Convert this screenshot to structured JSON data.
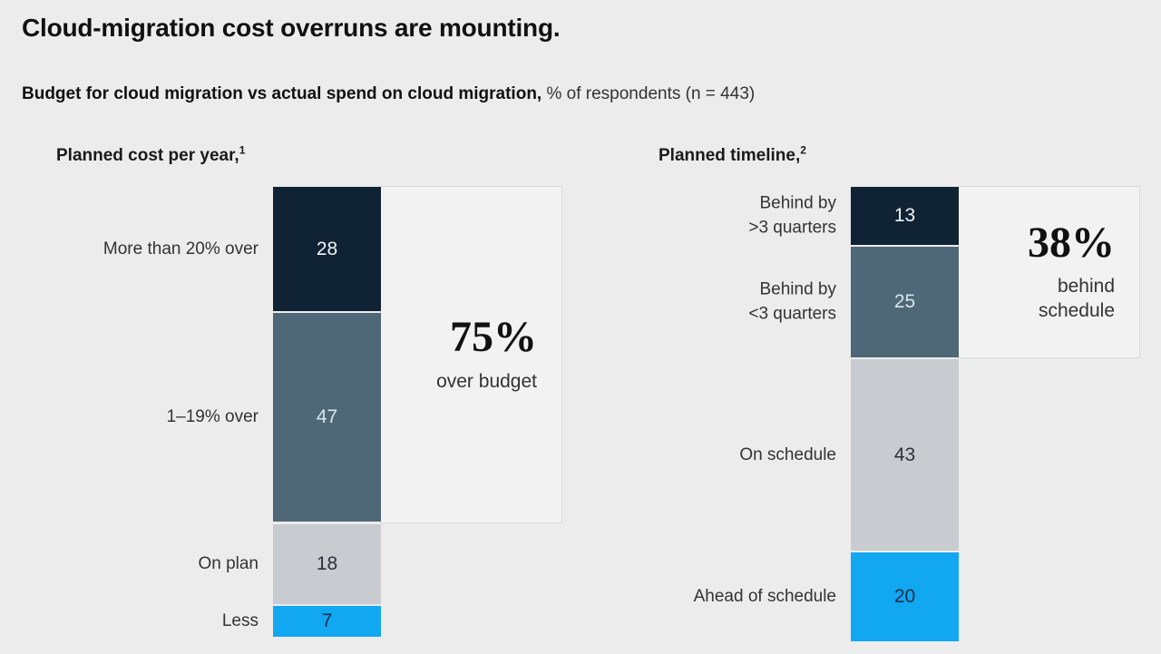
{
  "title": "Cloud-migration cost overruns are mounting.",
  "subtitle": {
    "bold": "Budget for cloud migration vs actual spend on cloud migration,",
    "regular": " % of respondents (n = 443)"
  },
  "colors": {
    "page_bg": "#ececed",
    "dark_navy": "#102335",
    "slate_blue": "#4e6878",
    "light_gray": "#c8cbd0",
    "bright_blue": "#12a7f1",
    "callout_bg": "#f2f2f2",
    "callout_border": "#d8dadb"
  },
  "chart_data": [
    {
      "type": "bar",
      "orientation": "vertical-stacked",
      "title": "Planned cost per year,",
      "footnote_marker": "1",
      "categories": [
        "More than 20% over",
        "1–19% over",
        "On plan",
        "Less"
      ],
      "values": [
        28,
        47,
        18,
        7
      ],
      "segment_colors": [
        "#102335",
        "#4e6878",
        "#c8cbd0",
        "#12a7f1"
      ],
      "value_text_colors": [
        "#f2f5f8",
        "#d9e5ed",
        "#2b3138",
        "#13304a"
      ],
      "ylim": [
        0,
        100
      ],
      "grid": false,
      "legend": "none",
      "callout": {
        "value": "75%",
        "label": "over budget",
        "spans_categories": [
          "More than 20% over",
          "1–19% over"
        ]
      }
    },
    {
      "type": "bar",
      "orientation": "vertical-stacked",
      "title": "Planned timeline,",
      "footnote_marker": "2",
      "categories": [
        "Behind by\n>3 quarters",
        "Behind by\n<3 quarters",
        "On schedule",
        "Ahead of schedule"
      ],
      "values": [
        13,
        25,
        43,
        20
      ],
      "segment_colors": [
        "#102335",
        "#4e6878",
        "#c8cbd0",
        "#12a7f1"
      ],
      "value_text_colors": [
        "#f2f5f8",
        "#d9e5ed",
        "#2b3138",
        "#13304a"
      ],
      "ylim": [
        0,
        100
      ],
      "grid": false,
      "legend": "none",
      "callout": {
        "value": "38%",
        "label": "behind\nschedule",
        "spans_categories": [
          "Behind by\n>3 quarters",
          "Behind by\n<3 quarters"
        ]
      }
    }
  ]
}
